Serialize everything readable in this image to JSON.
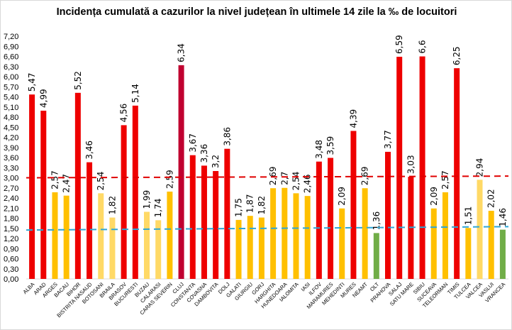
{
  "chart_data": {
    "type": "bar",
    "title": "Incidența cumulată a cazurilor la nivel județean în ultimele 14 zile la ‰ de locuitori",
    "xlabel": "",
    "ylabel": "",
    "ylim": [
      0,
      7.2
    ],
    "ytick_step": 0.3,
    "grid": false,
    "legend": "none",
    "categories": [
      "ALBA",
      "ARAD",
      "ARGES",
      "BACAU",
      "BIHOR",
      "BISTRITA NASAUD",
      "BOTOSANI",
      "BRAILA",
      "BRASOV",
      "BUCURESTI",
      "BUZAU",
      "CALARASI",
      "CARAS SEVERIN",
      "CLUJ",
      "CONSTANTA",
      "COVASNA",
      "DAMBOVITA",
      "DOLJ",
      "GALATI",
      "GIURGIU",
      "GORJ",
      "HARGHITA",
      "HUNEDOARA",
      "IALOMITA",
      "IASI",
      "ILFOV",
      "MARAMURES",
      "MEHEDINTI",
      "MURES",
      "NEAMT",
      "OLT",
      "PRAHOVA",
      "SALAJ",
      "SATU MARE",
      "SIBIU",
      "SUCEAVA",
      "TELEORMAN",
      "TIMIS",
      "TULCEA",
      "VALCEA",
      "VASLUI",
      "VRANCEA"
    ],
    "values": [
      5.47,
      4.99,
      2.57,
      2.47,
      5.52,
      3.46,
      2.54,
      1.82,
      4.56,
      5.14,
      1.99,
      1.74,
      2.59,
      6.34,
      3.67,
      3.36,
      3.2,
      3.86,
      1.75,
      1.87,
      1.82,
      2.69,
      2.7,
      2.54,
      2.46,
      3.48,
      3.59,
      2.09,
      4.39,
      2.69,
      1.36,
      3.77,
      6.59,
      3.03,
      6.6,
      2.09,
      2.57,
      6.25,
      1.51,
      2.94,
      2.02,
      1.46
    ],
    "data_labels": [
      "5,47",
      "4,99",
      "2,57",
      "2,47",
      "5,52",
      "3,46",
      "2,54",
      "1,82",
      "4,56",
      "5,14",
      "1,99",
      "1,74",
      "2,59",
      "6,34",
      "3,67",
      "3,36",
      "3,2",
      "3,86",
      "1,75",
      "1,87",
      "1,82",
      "2,69",
      "2,7",
      "2,54",
      "2,46",
      "3,48",
      "3,59",
      "2,09",
      "4,39",
      "2,69",
      "1,36",
      "3,77",
      "6,59",
      "3,03",
      "6,6",
      "2,09",
      "2,57",
      "6,25",
      "1,51",
      "2,94",
      "2,02",
      "1,46"
    ],
    "bar_colors": [
      "#EE0000",
      "#EE0000",
      "#FFC000",
      "#FFC000",
      "#EE0000",
      "#EE0000",
      "#FFD966",
      "#FFD966",
      "#EE0000",
      "#EE0000",
      "#FFD966",
      "#FFD966",
      "#FFC000",
      "#C00030",
      "#EE0000",
      "#EE0000",
      "#EE0000",
      "#EE0000",
      "#FFC000",
      "#FFC000",
      "#FFC000",
      "#FFC000",
      "#FFC000",
      "#FFC000",
      "#FFC000",
      "#EE0000",
      "#EE0000",
      "#FFC000",
      "#EE0000",
      "#FFC000",
      "#70AD47",
      "#EE0000",
      "#EE0000",
      "#EE0000",
      "#EE0000",
      "#FFC000",
      "#FFC000",
      "#EE0000",
      "#FFC000",
      "#FFD966",
      "#FFC000",
      "#70AD47"
    ],
    "reference_lines": [
      {
        "value_start": 3.0,
        "value_end": 3.05,
        "color": "#E00000",
        "style": "dashed"
      },
      {
        "value_start": 1.45,
        "value_end": 1.55,
        "color": "#2EA6D6",
        "style": "dashed"
      }
    ]
  }
}
